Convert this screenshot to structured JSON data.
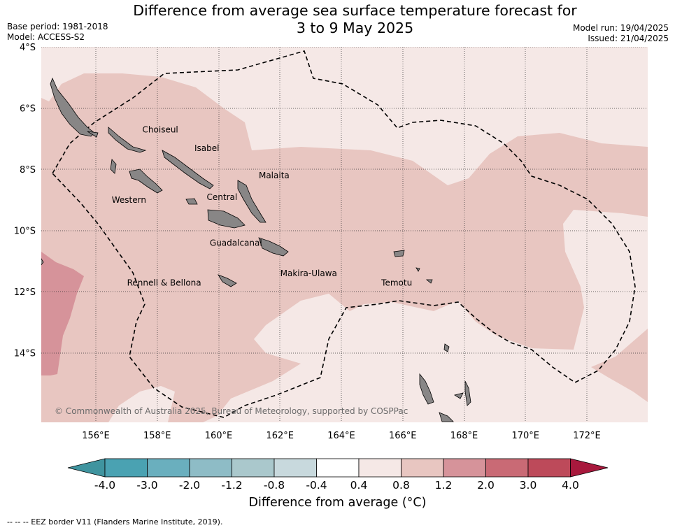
{
  "title_line1": "Difference from average sea surface temperature forecast for",
  "title_line2": "3 to 9 May 2025",
  "meta_left": [
    "Base period: 1981-2018",
    "Model: ACCESS-S2"
  ],
  "meta_right": [
    "Model run: 19/04/2025",
    "Issued: 21/04/2025"
  ],
  "lat_labels": [
    "4°S",
    "6°S",
    "8°S",
    "10°S",
    "12°S",
    "14°S"
  ],
  "lon_labels": [
    "156°E",
    "158°E",
    "160°E",
    "162°E",
    "164°E",
    "166°E",
    "168°E",
    "170°E",
    "172°E"
  ],
  "regions": [
    {
      "name": "Choiseul",
      "lon": 157.5,
      "lat": -6.8
    },
    {
      "name": "Isabel",
      "lon": 159.2,
      "lat": -7.4
    },
    {
      "name": "Malaita",
      "lon": 161.3,
      "lat": -8.3
    },
    {
      "name": "Western",
      "lon": 156.5,
      "lat": -9.1
    },
    {
      "name": "Central",
      "lon": 159.6,
      "lat": -9.0
    },
    {
      "name": "Guadalcanal",
      "lon": 159.7,
      "lat": -10.5
    },
    {
      "name": "Rennell & Bellona",
      "lon": 157.0,
      "lat": -11.8
    },
    {
      "name": "Makira-Ulawa",
      "lon": 162.0,
      "lat": -11.5
    },
    {
      "name": "Temotu",
      "lon": 165.3,
      "lat": -11.8
    }
  ],
  "copyright": "© Commonwealth of Australia 2025, Bureau of Meteorology, supported by COSPPac",
  "colorbar": {
    "title": "Difference from average (°C)",
    "ticks": [
      "-4.0",
      "-3.0",
      "-2.0",
      "-1.2",
      "-0.8",
      "-0.4",
      "0.4",
      "0.8",
      "1.2",
      "2.0",
      "3.0",
      "4.0"
    ],
    "colors": [
      "#3f949f",
      "#4aa2b2",
      "#6aafbe",
      "#8ebcc6",
      "#aac8cc",
      "#c8d9dd",
      "#ffffff",
      "#f5e8e6",
      "#e8c6c1",
      "#d6939a",
      "#c96a75",
      "#bd4a5a",
      "#a8193d"
    ]
  },
  "footnote": "-- -- -- EEZ border V11 (Flanders Marine Institute, 2019)."
}
